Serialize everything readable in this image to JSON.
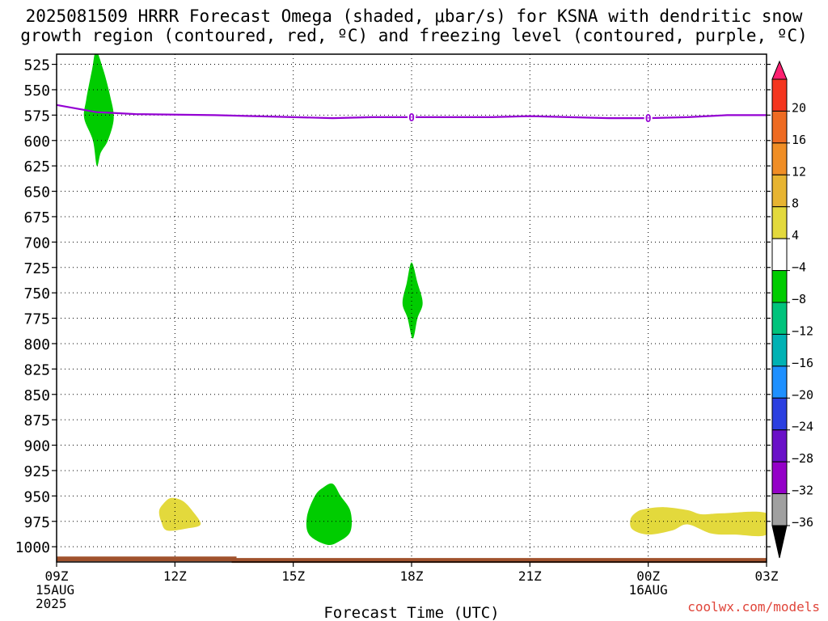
{
  "header": {
    "title_line1": "2025081509 HRRR Forecast Omega (shaded, μbar/s) for KSNA with dendritic snow",
    "title_line2": "growth region (contoured, red, ºC) and freezing level (contoured, purple, ºC)"
  },
  "credit": "coolwx.com/models",
  "chart_data": {
    "type": "area",
    "xlabel": "Forecast Time (UTC)",
    "x_ticks": [
      {
        "h": 0,
        "lines": [
          "09Z",
          "15AUG",
          "2025"
        ]
      },
      {
        "h": 3,
        "lines": [
          "12Z"
        ]
      },
      {
        "h": 6,
        "lines": [
          "15Z"
        ]
      },
      {
        "h": 9,
        "lines": [
          "18Z"
        ]
      },
      {
        "h": 12,
        "lines": [
          "21Z"
        ]
      },
      {
        "h": 15,
        "lines": [
          "00Z",
          "16AUG"
        ]
      },
      {
        "h": 18,
        "lines": [
          "03Z"
        ]
      }
    ],
    "xlim_hours": [
      0,
      18
    ],
    "y_axis": "pressure (hPa), reversed",
    "ylim": [
      1015,
      515
    ],
    "y_ticks": [
      525,
      550,
      575,
      600,
      625,
      650,
      675,
      700,
      725,
      750,
      775,
      800,
      825,
      850,
      875,
      900,
      925,
      950,
      975,
      1000
    ],
    "grid": true,
    "freezing_level": {
      "color": "#9400d3",
      "label": "0",
      "points": [
        [
          0,
          565
        ],
        [
          1,
          572
        ],
        [
          2,
          574
        ],
        [
          4,
          575
        ],
        [
          5,
          576
        ],
        [
          7,
          578
        ],
        [
          8,
          577
        ],
        [
          9,
          577
        ],
        [
          10,
          577
        ],
        [
          11,
          577
        ],
        [
          12,
          576
        ],
        [
          13,
          577
        ],
        [
          14,
          578
        ],
        [
          15,
          578
        ],
        [
          16,
          577
        ],
        [
          17,
          575
        ],
        [
          18,
          575
        ]
      ],
      "label_hours": [
        9,
        15
      ]
    },
    "omega_regions": [
      {
        "value_range": "-8 to -4",
        "color": "#00cc00",
        "outline": [
          [
            1.0,
            512
          ],
          [
            1.18,
            530
          ],
          [
            1.35,
            555
          ],
          [
            1.45,
            578
          ],
          [
            1.3,
            600
          ],
          [
            1.12,
            612
          ],
          [
            1.02,
            625
          ],
          [
            0.92,
            600
          ],
          [
            0.7,
            578
          ],
          [
            0.75,
            560
          ],
          [
            0.9,
            530
          ]
        ]
      },
      {
        "value_range": "-8 to -4",
        "color": "#00cc00",
        "outline": [
          [
            9.0,
            720
          ],
          [
            9.15,
            740
          ],
          [
            9.28,
            760
          ],
          [
            9.15,
            775
          ],
          [
            9.03,
            795
          ],
          [
            8.9,
            775
          ],
          [
            8.77,
            760
          ],
          [
            8.88,
            740
          ]
        ]
      },
      {
        "value_range": "-8 to -4",
        "color": "#00cc00",
        "outline": [
          [
            7.0,
            938
          ],
          [
            7.2,
            950
          ],
          [
            7.45,
            965
          ],
          [
            7.45,
            985
          ],
          [
            7.15,
            995
          ],
          [
            6.85,
            998
          ],
          [
            6.4,
            988
          ],
          [
            6.35,
            970
          ],
          [
            6.55,
            950
          ],
          [
            6.75,
            942
          ]
        ]
      },
      {
        "value_range": "4 to 8",
        "color": "#e3d93c",
        "outline": [
          [
            2.9,
            952
          ],
          [
            3.2,
            955
          ],
          [
            3.45,
            965
          ],
          [
            3.65,
            978
          ],
          [
            3.3,
            982
          ],
          [
            2.8,
            984
          ],
          [
            2.65,
            975
          ],
          [
            2.6,
            965
          ],
          [
            2.7,
            958
          ]
        ]
      },
      {
        "value_range": "4 to 8",
        "color": "#e3d93c",
        "outline": [
          [
            14.9,
            963
          ],
          [
            15.4,
            961
          ],
          [
            16.0,
            964
          ],
          [
            16.35,
            968
          ],
          [
            16.9,
            967
          ],
          [
            18.0,
            967
          ],
          [
            18.0,
            988
          ],
          [
            17.2,
            988
          ],
          [
            16.6,
            987
          ],
          [
            16.0,
            978
          ],
          [
            15.6,
            984
          ],
          [
            15.0,
            988
          ],
          [
            14.6,
            983
          ],
          [
            14.55,
            973
          ],
          [
            14.7,
            966
          ]
        ]
      }
    ],
    "surface": {
      "color": "#a0522d",
      "segments": [
        [
          0,
          1012
        ],
        [
          4.5,
          1012
        ],
        [
          4.5,
          1013.5
        ],
        [
          18,
          1013.5
        ]
      ]
    },
    "colorbar": {
      "labels": [
        "20",
        "16",
        "12",
        "8",
        "4",
        "-4",
        "-8",
        "-12",
        "-16",
        "-20",
        "-24",
        "-28",
        "-32",
        "-36"
      ],
      "colors": [
        "#ff2070",
        "#f4351e",
        "#ee6b22",
        "#f08e25",
        "#e7b431",
        "#e3d93c",
        "#ffffff",
        "#00cc00",
        "#00c37c",
        "#00b2b4",
        "#1e90ff",
        "#2b3fe0",
        "#6a10c8",
        "#9400c8",
        "#a0a0a0",
        "#000000"
      ]
    }
  }
}
